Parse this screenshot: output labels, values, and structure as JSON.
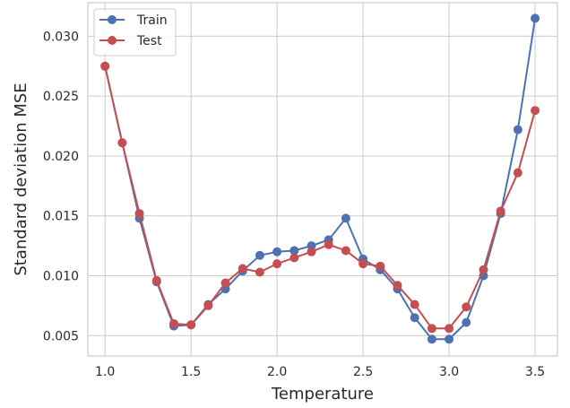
{
  "chart_data": {
    "type": "line",
    "title": "",
    "xlabel": "Temperature",
    "ylabel": "Standard deviation MSE",
    "xlim": [
      0.9,
      3.63
    ],
    "ylim": [
      0.0033,
      0.0328
    ],
    "xticks": [
      1.0,
      1.5,
      2.0,
      2.5,
      3.0,
      3.5
    ],
    "xtick_labels": [
      "1.0",
      "1.5",
      "2.0",
      "2.5",
      "3.0",
      "3.5"
    ],
    "yticks": [
      0.005,
      0.01,
      0.015,
      0.02,
      0.025,
      0.03
    ],
    "ytick_labels": [
      "0.005",
      "0.010",
      "0.015",
      "0.020",
      "0.025",
      "0.030"
    ],
    "grid": true,
    "legend_position": "top-left",
    "x": [
      1.0,
      1.1,
      1.2,
      1.3,
      1.4,
      1.5,
      1.6,
      1.7,
      1.8,
      1.9,
      2.0,
      2.1,
      2.2,
      2.3,
      2.4,
      2.5,
      2.6,
      2.7,
      2.8,
      2.9,
      3.0,
      3.1,
      3.2,
      3.3,
      3.4,
      3.5
    ],
    "series": [
      {
        "name": "Train",
        "color": "#4c72b0",
        "values": [
          0.0275,
          0.0211,
          0.0148,
          0.0095,
          0.0058,
          0.0059,
          0.0076,
          0.0089,
          0.0104,
          0.0117,
          0.012,
          0.0121,
          0.0125,
          0.013,
          0.0148,
          0.0114,
          0.0105,
          0.0089,
          0.0065,
          0.0047,
          0.0047,
          0.0061,
          0.01,
          0.0152,
          0.0222,
          0.0315
        ]
      },
      {
        "name": "Test",
        "color": "#c44e52",
        "values": [
          0.0275,
          0.0211,
          0.0152,
          0.0096,
          0.006,
          0.0059,
          0.0075,
          0.0094,
          0.0106,
          0.0103,
          0.011,
          0.0115,
          0.012,
          0.0126,
          0.0121,
          0.011,
          0.0108,
          0.0092,
          0.0076,
          0.0056,
          0.0056,
          0.0074,
          0.0105,
          0.0154,
          0.0186,
          0.0238
        ]
      }
    ]
  }
}
